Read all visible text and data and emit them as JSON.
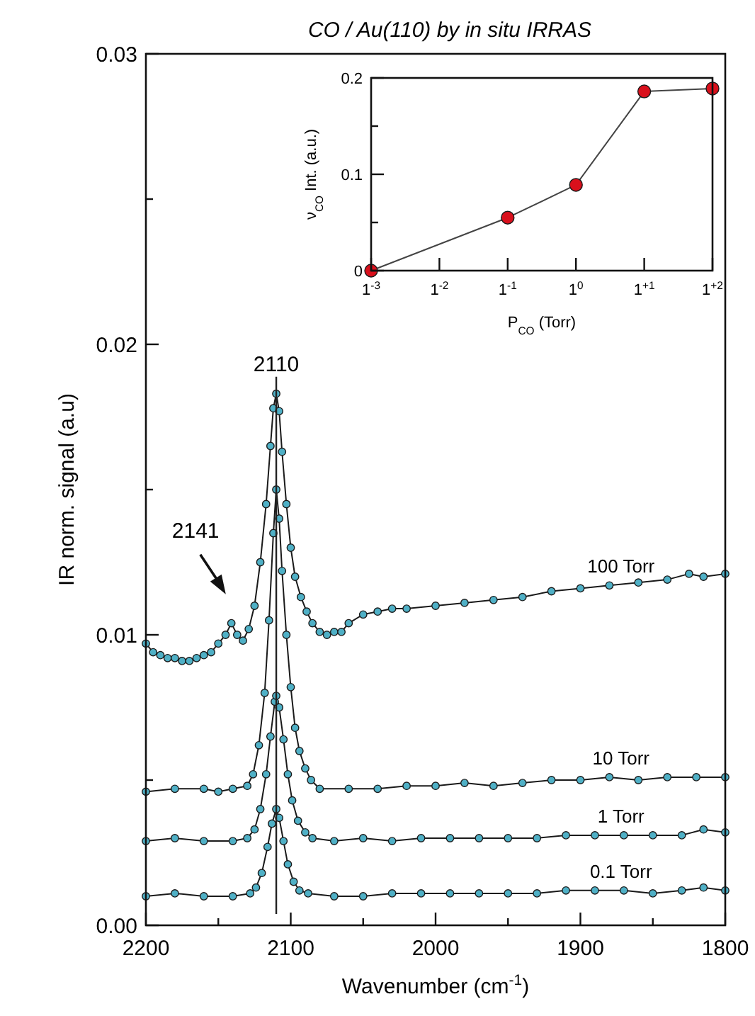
{
  "chart_data": [
    {
      "type": "line",
      "title": "CO / Au(110) by in situ IRRAS",
      "xlabel": "Wavenumber (cm$^{-1}$)",
      "ylabel": "IR norm. signal (a.u)",
      "xlim": [
        2200,
        1800
      ],
      "ylim": [
        0,
        0.03
      ],
      "xticks": [
        2200,
        {
          "value": 2150,
          "label": null
        },
        2100,
        {
          "value": 2050,
          "label": null
        },
        2000,
        {
          "value": 1950,
          "label": null
        },
        1900,
        {
          "value": 1850,
          "label": null
        },
        1800
      ],
      "yticks": [
        {
          "value": 0,
          "label": "0.00"
        },
        {
          "value": 0.005,
          "label": null
        },
        0.01,
        {
          "value": 0.015,
          "label": null
        },
        0.02,
        {
          "value": 0.025,
          "label": null
        },
        0.03
      ],
      "marker": "circle",
      "legend": false,
      "ref_lines": [
        {
          "axis": "x",
          "value": 2110,
          "label": "2110"
        }
      ],
      "annotations": [
        "2141"
      ],
      "series": [
        {
          "name": "100 Torr",
          "color": "#4fb0c6",
          "x": [
            2200,
            2195,
            2190,
            2185,
            2180,
            2175,
            2170,
            2165,
            2160,
            2155,
            2150,
            2145,
            2141,
            2137,
            2133,
            2129,
            2125,
            2121,
            2117,
            2114,
            2112,
            2110,
            2108,
            2106,
            2103,
            2100,
            2097,
            2093,
            2089,
            2085,
            2080,
            2075,
            2070,
            2065,
            2060,
            2050,
            2040,
            2030,
            2020,
            2000,
            1980,
            1960,
            1940,
            1920,
            1900,
            1880,
            1860,
            1840,
            1825,
            1815,
            1800
          ],
          "values": [
            0.0097,
            0.0094,
            0.0093,
            0.0092,
            0.0092,
            0.0091,
            0.0091,
            0.0092,
            0.0093,
            0.0094,
            0.0097,
            0.01,
            0.0104,
            0.01,
            0.0098,
            0.0102,
            0.011,
            0.0125,
            0.0145,
            0.0165,
            0.0178,
            0.0183,
            0.0177,
            0.0163,
            0.0145,
            0.013,
            0.012,
            0.0113,
            0.0108,
            0.0104,
            0.0101,
            0.01,
            0.0101,
            0.0101,
            0.0104,
            0.0107,
            0.0108,
            0.0109,
            0.0109,
            0.011,
            0.0111,
            0.0112,
            0.0113,
            0.0115,
            0.0116,
            0.0117,
            0.0118,
            0.0119,
            0.0121,
            0.012,
            0.0121
          ]
        },
        {
          "name": "10 Torr",
          "color": "#4fb0c6",
          "x": [
            2200,
            2180,
            2160,
            2150,
            2140,
            2130,
            2126,
            2122,
            2118,
            2115,
            2112,
            2110,
            2108,
            2106,
            2103,
            2100,
            2097,
            2094,
            2090,
            2086,
            2080,
            2060,
            2040,
            2020,
            2000,
            1980,
            1960,
            1940,
            1920,
            1900,
            1880,
            1860,
            1840,
            1820,
            1800
          ],
          "values": [
            0.0046,
            0.0047,
            0.0047,
            0.0046,
            0.0047,
            0.0048,
            0.0052,
            0.0062,
            0.008,
            0.0105,
            0.0135,
            0.015,
            0.014,
            0.0122,
            0.01,
            0.0082,
            0.0068,
            0.006,
            0.0054,
            0.005,
            0.0047,
            0.0047,
            0.0047,
            0.0048,
            0.0048,
            0.0049,
            0.0048,
            0.0049,
            0.005,
            0.005,
            0.0051,
            0.005,
            0.0051,
            0.0051,
            0.0051
          ]
        },
        {
          "name": "1 Torr",
          "color": "#4fb0c6",
          "x": [
            2200,
            2180,
            2160,
            2140,
            2130,
            2125,
            2121,
            2117,
            2114,
            2111,
            2110,
            2108,
            2105,
            2102,
            2099,
            2095,
            2090,
            2085,
            2070,
            2050,
            2030,
            2010,
            1990,
            1970,
            1950,
            1930,
            1910,
            1890,
            1870,
            1850,
            1830,
            1815,
            1800
          ],
          "values": [
            0.0029,
            0.003,
            0.0029,
            0.0029,
            0.003,
            0.0033,
            0.004,
            0.0052,
            0.0065,
            0.0077,
            0.0079,
            0.0075,
            0.0064,
            0.0052,
            0.0043,
            0.0036,
            0.0032,
            0.003,
            0.0029,
            0.003,
            0.0029,
            0.003,
            0.003,
            0.003,
            0.003,
            0.003,
            0.0031,
            0.0031,
            0.0031,
            0.0031,
            0.0031,
            0.0033,
            0.0032
          ]
        },
        {
          "name": "0.1 Torr",
          "color": "#4fb0c6",
          "x": [
            2200,
            2180,
            2160,
            2140,
            2128,
            2124,
            2120,
            2116,
            2113,
            2110,
            2108,
            2105,
            2102,
            2098,
            2094,
            2088,
            2070,
            2050,
            2030,
            2010,
            1990,
            1970,
            1950,
            1930,
            1910,
            1890,
            1870,
            1850,
            1830,
            1815,
            1800
          ],
          "values": [
            0.001,
            0.0011,
            0.001,
            0.001,
            0.0011,
            0.0013,
            0.0018,
            0.0027,
            0.0035,
            0.004,
            0.0037,
            0.0029,
            0.0021,
            0.0015,
            0.0012,
            0.0011,
            0.001,
            0.001,
            0.0011,
            0.0011,
            0.0011,
            0.0011,
            0.0011,
            0.0011,
            0.0012,
            0.0012,
            0.0012,
            0.0011,
            0.0012,
            0.0013,
            0.0012
          ]
        }
      ]
    },
    {
      "type": "line",
      "xlabel": "P$_{CO}$ (Torr)",
      "ylabel": "ν$_{CO}$ Int. (a.u.)",
      "ylim": [
        0,
        0.2
      ],
      "categories": [
        "1$^{-3}$",
        "1$^{-2}$",
        "1$^{-1}$",
        "1$^{0}$",
        "1$^{+1}$",
        "1$^{+2}$"
      ],
      "yticks": [
        0,
        {
          "value": 0.05,
          "label": null
        },
        0.1,
        {
          "value": 0.15,
          "label": null
        },
        0.2
      ],
      "marker": "circle",
      "legend": false,
      "series": [
        {
          "color": "#d9101c",
          "values": [
            0,
            null,
            0.055,
            0.089,
            0.186,
            0.189
          ]
        }
      ]
    }
  ]
}
